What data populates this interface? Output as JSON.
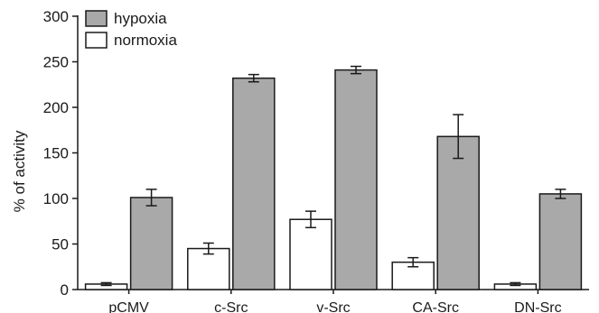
{
  "chart_data": {
    "type": "bar",
    "title": "",
    "xlabel": "",
    "ylabel": "% of activity",
    "ylim": [
      0,
      300
    ],
    "yticks": [
      0,
      50,
      100,
      150,
      200,
      250,
      300
    ],
    "categories": [
      "pCMV",
      "c-Src",
      "v-Src",
      "CA-Src",
      "DN-Src"
    ],
    "series": [
      {
        "name": "normoxia",
        "color": "#ffffff",
        "values": [
          6,
          45,
          77,
          30,
          6
        ],
        "errors": [
          1.5,
          6,
          9,
          5,
          1.5
        ]
      },
      {
        "name": "hypoxia",
        "color": "#a9a9a9",
        "values": [
          101,
          232,
          241,
          168,
          105
        ],
        "errors": [
          9,
          4,
          4,
          24,
          5
        ]
      }
    ],
    "legend": {
      "placement": "top-left",
      "order": [
        "hypoxia",
        "normoxia"
      ]
    },
    "grid": false
  }
}
